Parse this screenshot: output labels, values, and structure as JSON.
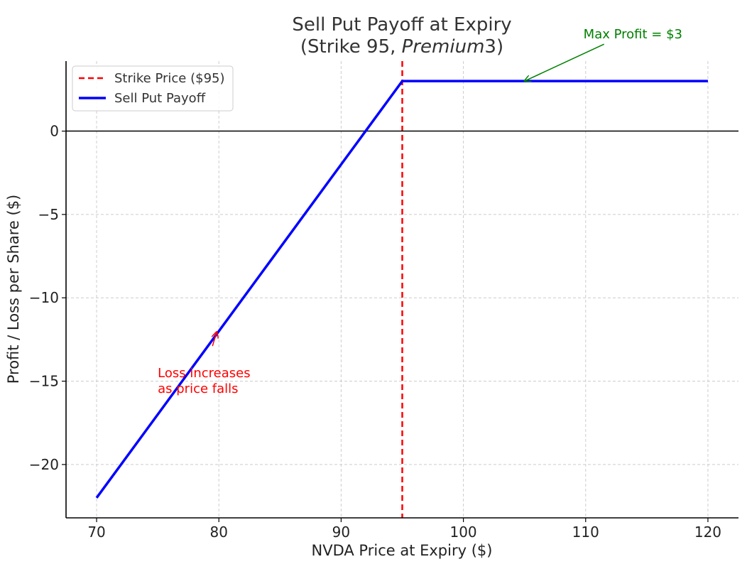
{
  "chart_data": {
    "type": "line",
    "title": "Sell Put Payoff at Expiry",
    "subtitle_parts": [
      "(Strike 95, ",
      "Premium",
      "3)"
    ],
    "xlabel": "NVDA Price at Expiry ($)",
    "ylabel": "Profit / Loss per Share ($)",
    "xlim": [
      67.5,
      122.5
    ],
    "ylim": [
      -23.2,
      4.2
    ],
    "xticks": [
      70,
      80,
      90,
      100,
      110,
      120
    ],
    "yticks": [
      0,
      -5,
      -10,
      -15,
      -20
    ],
    "ytick_labels": [
      "0",
      "−5",
      "−10",
      "−15",
      "−20"
    ],
    "grid": true,
    "legend_position": "top-left",
    "series": [
      {
        "name": "Sell Put Payoff",
        "color": "#0000ff",
        "style": "solid",
        "x": [
          70,
          95,
          120
        ],
        "y": [
          -22,
          3,
          3
        ]
      }
    ],
    "reference_lines": [
      {
        "name": "Strike Price ($95)",
        "orientation": "vertical",
        "x": 95,
        "color": "#ff0000",
        "style": "dashed"
      },
      {
        "orientation": "horizontal",
        "y": 0,
        "color": "#000000",
        "style": "solid"
      }
    ],
    "annotations": [
      {
        "text": "Max Profit = $3",
        "color": "#008000",
        "arrow_to": [
          105,
          3
        ],
        "text_at": [
          105,
          5.3
        ]
      },
      {
        "lines": [
          "Loss increases",
          "as price falls"
        ],
        "color": "#ff0000",
        "arrow_to": [
          80,
          -12
        ],
        "text_at": [
          75,
          -14
        ]
      }
    ]
  }
}
